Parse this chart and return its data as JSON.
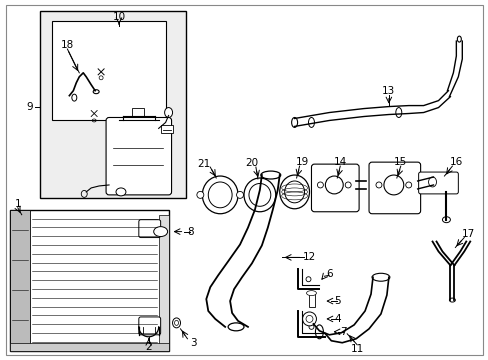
{
  "bg_color": "#ffffff",
  "line_color": "#000000",
  "inset_bg": "#eeeeee",
  "fig_w": 4.89,
  "fig_h": 3.6,
  "dpi": 100
}
